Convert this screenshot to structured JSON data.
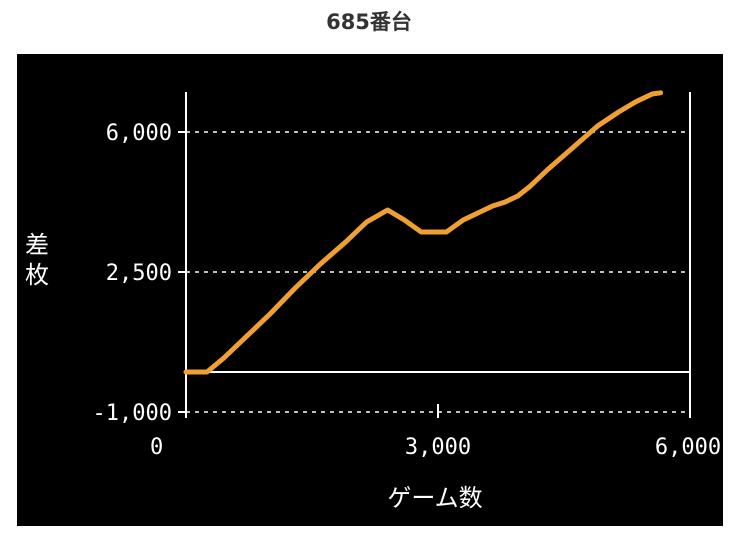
{
  "title": "685番台",
  "colors": {
    "background": "#000000",
    "line": "#f0a030",
    "axis": "#ffffff",
    "grid": "#ffffff"
  },
  "chart_data": {
    "type": "line",
    "title": "685番台",
    "xlabel": "ゲーム数",
    "ylabel": "差枚",
    "xlim": [
      0,
      6000
    ],
    "ylim": [
      -1000,
      7000
    ],
    "x_ticks": [
      {
        "value": 0,
        "label": "0"
      },
      {
        "value": 3000,
        "label": "3,000"
      },
      {
        "value": 6000,
        "label": "6,000"
      }
    ],
    "y_ticks": [
      {
        "value": -1000,
        "label": "-1,000"
      },
      {
        "value": 2500,
        "label": "2,500"
      },
      {
        "value": 6000,
        "label": "6,000"
      }
    ],
    "grid_y": [
      -1000,
      2500,
      6000
    ],
    "baseline": 0,
    "series": [
      {
        "x": [
          0,
          250,
          450,
          700,
          1000,
          1300,
          1600,
          1900,
          2150,
          2400,
          2600,
          2800,
          2950,
          3100,
          3300,
          3500,
          3650,
          3800,
          3950,
          4100,
          4300,
          4600,
          4900,
          5150,
          5350,
          5550,
          5650
        ],
        "y": [
          0,
          0,
          350,
          850,
          1450,
          2100,
          2700,
          3250,
          3750,
          4050,
          3800,
          3500,
          3500,
          3500,
          3800,
          4000,
          4150,
          4250,
          4400,
          4650,
          5050,
          5600,
          6150,
          6500,
          6750,
          6950,
          6980
        ]
      }
    ]
  }
}
